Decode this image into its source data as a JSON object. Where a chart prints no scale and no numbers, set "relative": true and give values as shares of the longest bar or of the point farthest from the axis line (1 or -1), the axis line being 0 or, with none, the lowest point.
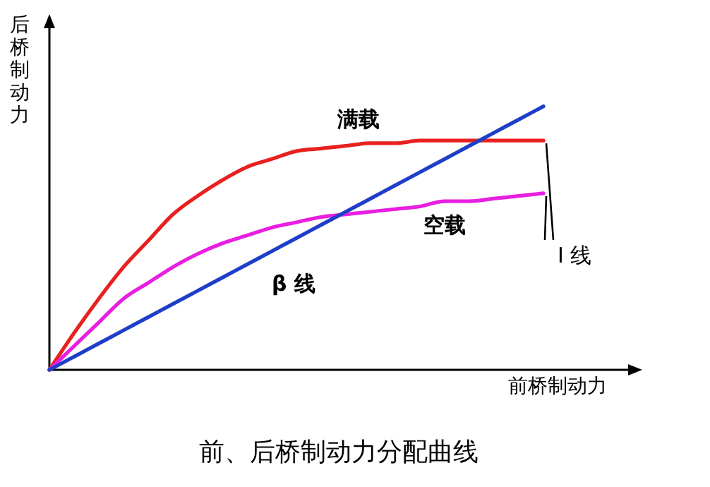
{
  "chart_data": {
    "type": "line",
    "relative": true,
    "title": "前、后桥制动力分配曲线",
    "xlabel": "前桥制动力",
    "ylabel": "后桥制动力",
    "annotations": [
      "I 线"
    ],
    "categories": [
      null,
      null,
      null,
      null,
      null,
      null,
      null,
      null,
      null,
      null,
      null,
      null,
      null,
      null,
      null,
      null,
      null,
      null,
      null,
      null,
      null,
      null,
      null,
      null,
      null
    ],
    "series": [
      {
        "name": "满载",
        "color": "#e8201f",
        "values": [
          0,
          0.14,
          0.27,
          0.39,
          0.49,
          0.59,
          0.66,
          0.72,
          0.77,
          0.8,
          0.83,
          0.84,
          0.85,
          0.86,
          0.86,
          0.87,
          0.87,
          0.87,
          0.87,
          0.87,
          0.87,
          null,
          null,
          null,
          null
        ]
      },
      {
        "name": "空载",
        "color": "#e81ee0",
        "values": [
          0,
          0.09,
          0.18,
          0.27,
          0.33,
          0.39,
          0.44,
          0.48,
          0.51,
          0.54,
          0.56,
          0.58,
          0.59,
          0.6,
          0.61,
          0.62,
          0.64,
          0.64,
          0.65,
          0.66,
          0.67,
          null,
          null,
          null,
          null
        ]
      },
      {
        "name": "β 线",
        "color": "#1f3ec8",
        "values": [
          0,
          0.05,
          0.1,
          0.15,
          0.2,
          0.25,
          0.3,
          0.35,
          0.4,
          0.45,
          0.5,
          0.55,
          0.6,
          0.65,
          0.7,
          0.75,
          0.8,
          0.85,
          0.9,
          0.95,
          1,
          null,
          null,
          null,
          null
        ]
      }
    ]
  }
}
